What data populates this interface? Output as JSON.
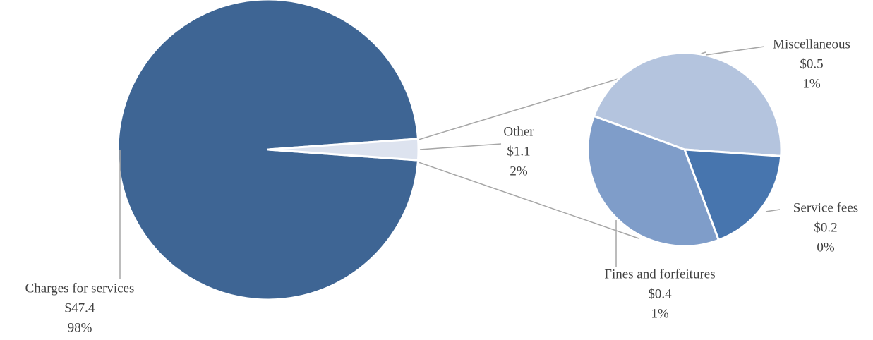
{
  "chart_data": [
    {
      "type": "pie",
      "categories": [
        "Charges for services",
        "Other"
      ],
      "values": [
        47.4,
        1.1
      ],
      "value_labels": [
        "$47.4",
        "$1.1"
      ],
      "shares": [
        98,
        2
      ],
      "share_labels": [
        "98%",
        "2%"
      ],
      "colors": [
        "#3e6594",
        "#dde3ef"
      ]
    },
    {
      "type": "pie",
      "categories": [
        "Miscellaneous",
        "Service fees",
        "Fines and forfeitures"
      ],
      "values": [
        0.5,
        0.2,
        0.4
      ],
      "value_labels": [
        "$0.5",
        "$0.2",
        "$0.4"
      ],
      "shares": [
        1,
        0,
        1
      ],
      "share_labels": [
        "1%",
        "0%",
        "1%"
      ],
      "colors": [
        "#b4c4de",
        "#4775ae",
        "#7f9dc9"
      ]
    }
  ]
}
